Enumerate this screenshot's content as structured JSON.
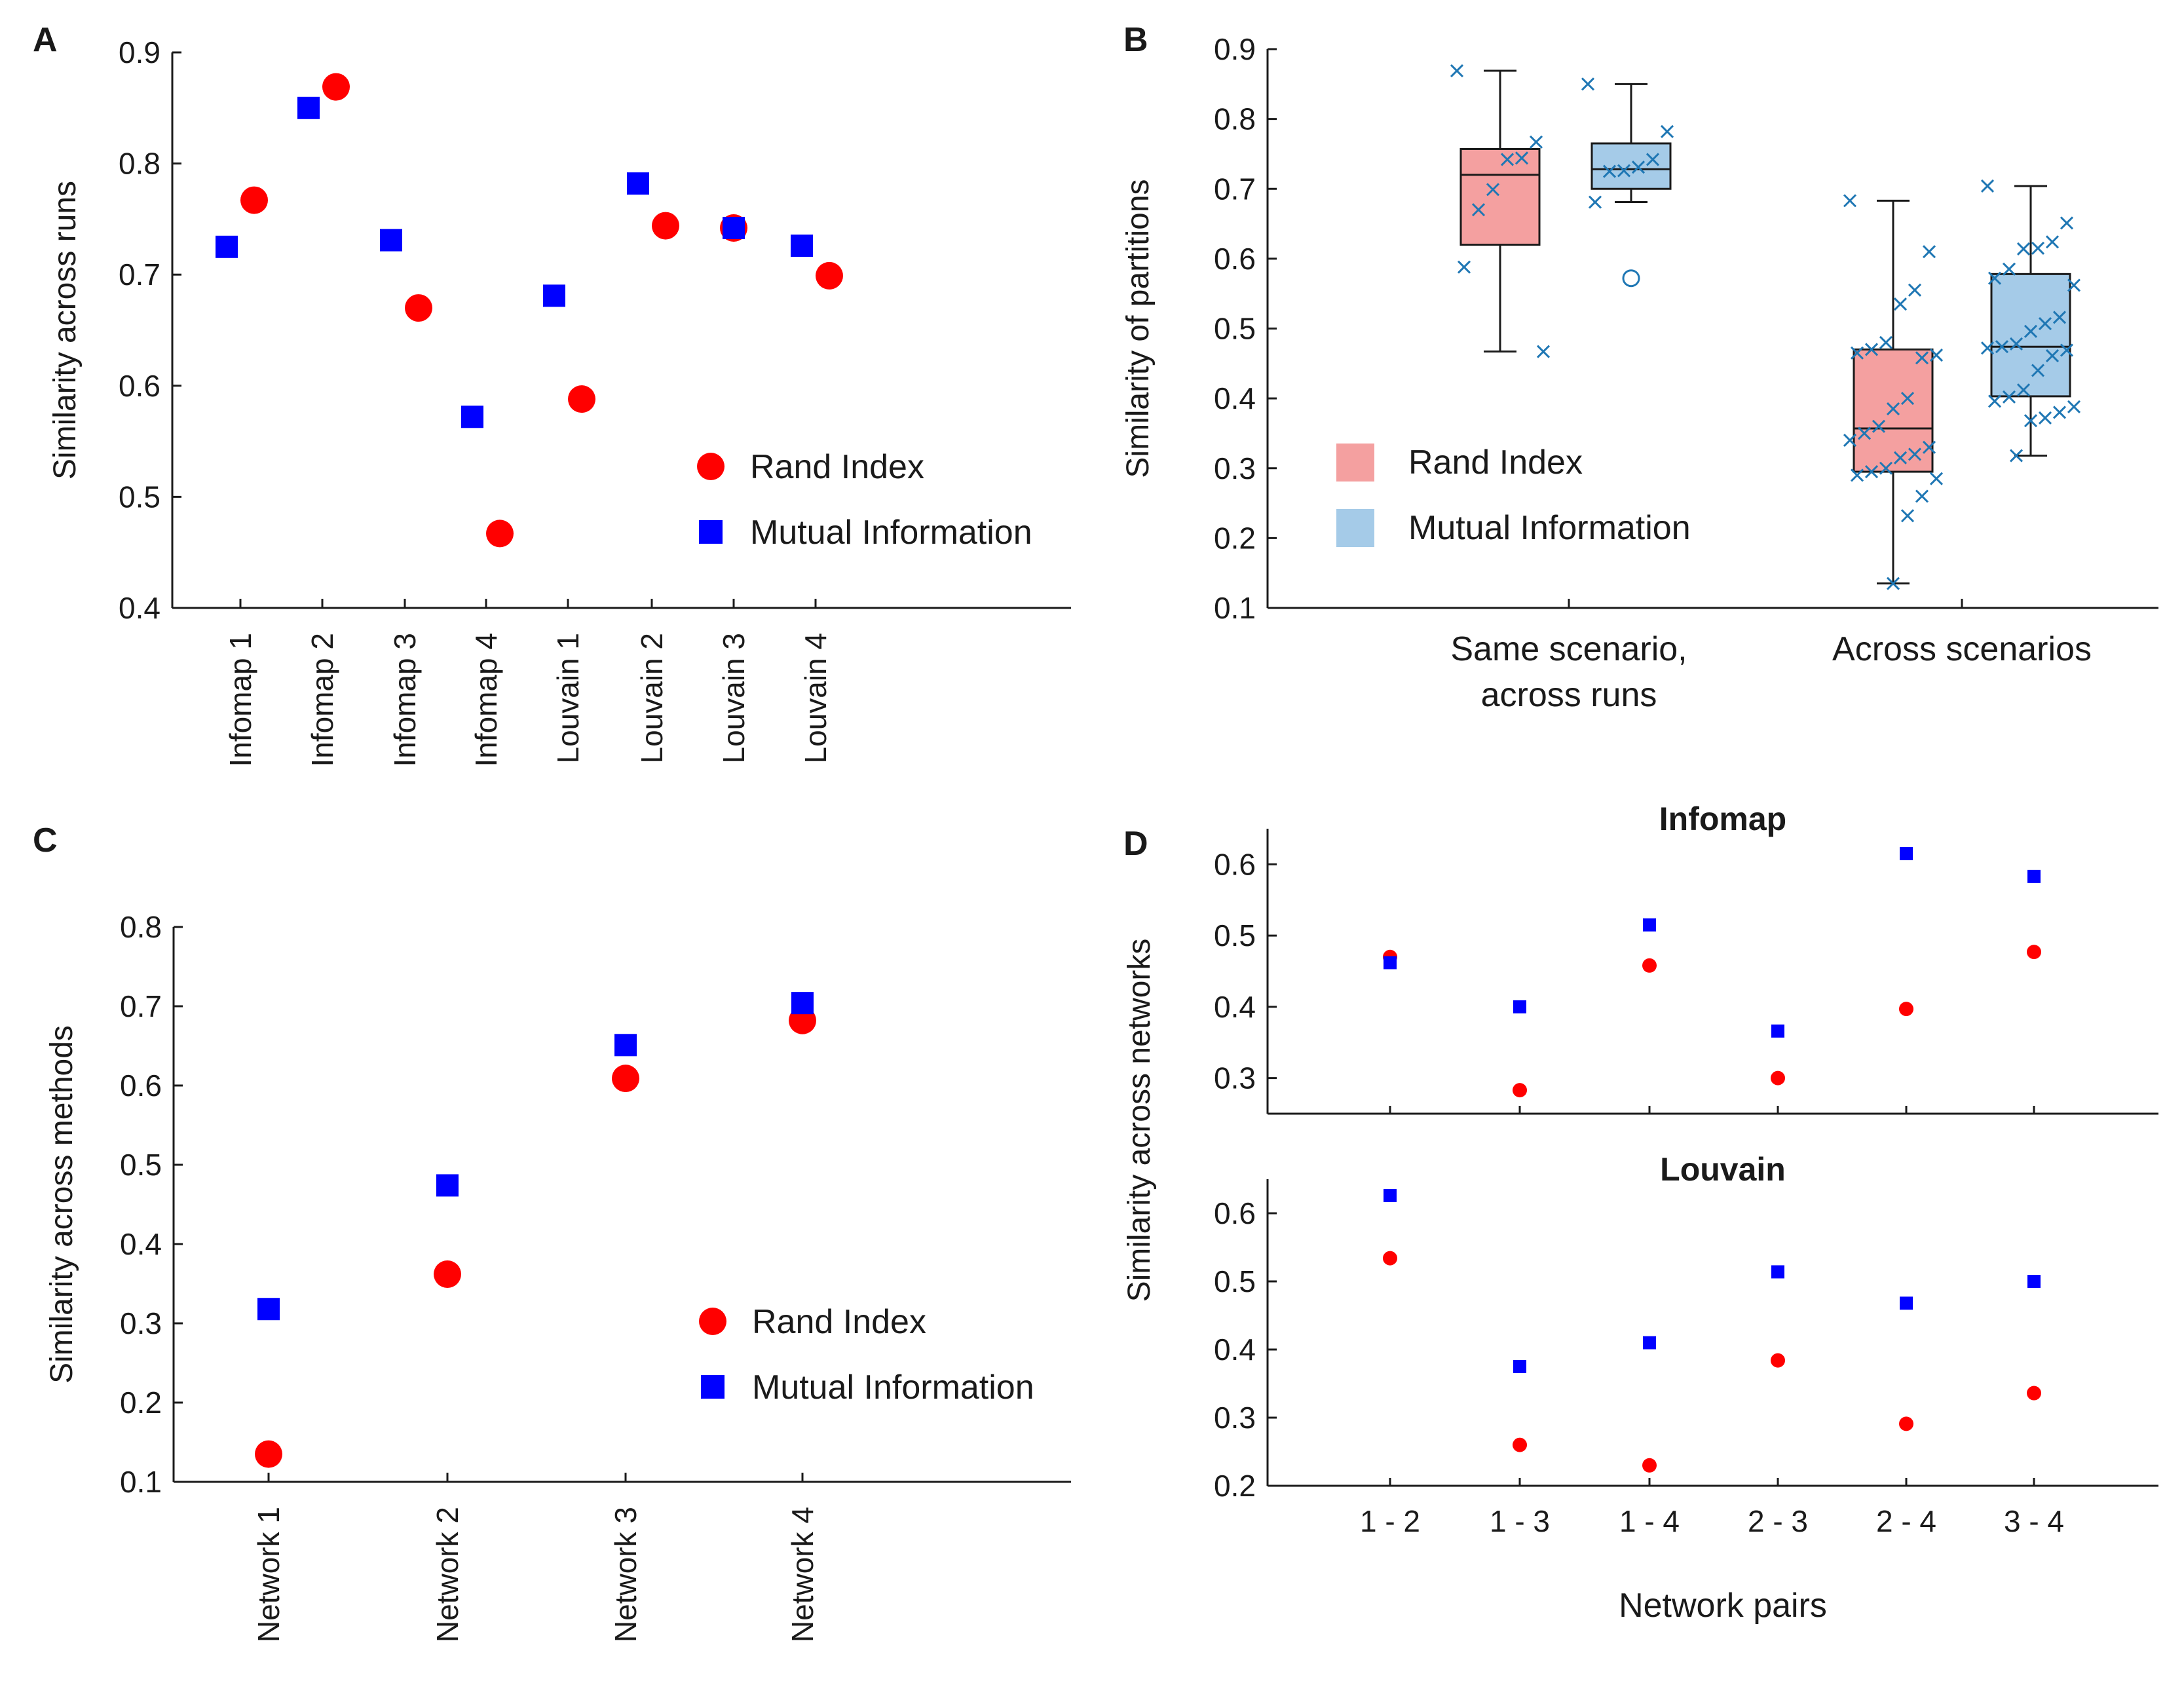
{
  "colors": {
    "rand": "#ff0000",
    "mi": "#0000ff",
    "rand_box": "#f4a0a0",
    "mi_box": "#a5cbe8",
    "scatter_x": "#1f77b4",
    "axis": "#1a1a1a"
  },
  "chart_data": [
    {
      "id": "A",
      "type": "scatter",
      "panel_label": "A",
      "title": "",
      "xlabel": "",
      "ylabel": "Similarity  across runs",
      "ylim": [
        0.4,
        0.9
      ],
      "yticks": [
        "0.4",
        "0.5",
        "0.6",
        "0.7",
        "0.8",
        "0.9"
      ],
      "categories": [
        "Infomap 1",
        "Infomap 2",
        "Infomap 3",
        "Infomap 4",
        "Louvain 1",
        "Louvain 2",
        "Louvain 3",
        "Louvain 4"
      ],
      "series": [
        {
          "name": "Rand Index",
          "marker": "circle",
          "values": [
            0.767,
            0.869,
            0.67,
            0.467,
            0.588,
            0.744,
            0.742,
            0.699
          ]
        },
        {
          "name": "Mutual Information",
          "marker": "square",
          "values": [
            0.725,
            0.85,
            0.731,
            0.572,
            0.681,
            0.782,
            0.742,
            0.726
          ]
        }
      ],
      "legend": [
        "Rand Index",
        "Mutual Information"
      ]
    },
    {
      "id": "B",
      "type": "box",
      "panel_label": "B",
      "title": "",
      "xlabel": "",
      "ylabel": "Similarity of partitions",
      "ylim": [
        0.1,
        0.9
      ],
      "yticks": [
        "0.1",
        "0.2",
        "0.3",
        "0.4",
        "0.5",
        "0.6",
        "0.7",
        "0.8",
        "0.9"
      ],
      "groups": [
        {
          "label_lines": [
            "Same scenario,",
            "across runs"
          ]
        },
        {
          "label_lines": [
            "Across scenarios"
          ]
        }
      ],
      "boxes": [
        {
          "group": 0,
          "series": "Rand Index",
          "min": 0.467,
          "q1": 0.62,
          "median": 0.72,
          "q3": 0.757,
          "max": 0.869,
          "outliers": [],
          "points": [
            0.869,
            0.767,
            0.744,
            0.742,
            0.699,
            0.67,
            0.588,
            0.467
          ]
        },
        {
          "group": 0,
          "series": "Mutual Information",
          "min": 0.681,
          "q1": 0.7,
          "median": 0.728,
          "q3": 0.765,
          "max": 0.85,
          "outliers": [
            0.572
          ],
          "points": [
            0.85,
            0.782,
            0.742,
            0.731,
            0.726,
            0.725,
            0.681
          ]
        },
        {
          "group": 1,
          "series": "Rand Index",
          "min": 0.135,
          "q1": 0.295,
          "median": 0.357,
          "q3": 0.47,
          "max": 0.683,
          "outliers": [],
          "points": [
            0.683,
            0.61,
            0.555,
            0.535,
            0.48,
            0.47,
            0.465,
            0.462,
            0.458,
            0.4,
            0.385,
            0.36,
            0.35,
            0.34,
            0.33,
            0.32,
            0.315,
            0.3,
            0.295,
            0.29,
            0.285,
            0.26,
            0.232,
            0.135
          ]
        },
        {
          "group": 1,
          "series": "Mutual Information",
          "min": 0.318,
          "q1": 0.403,
          "median": 0.474,
          "q3": 0.578,
          "max": 0.704,
          "outliers": [],
          "points": [
            0.704,
            0.651,
            0.624,
            0.615,
            0.614,
            0.585,
            0.572,
            0.562,
            0.516,
            0.507,
            0.496,
            0.478,
            0.474,
            0.472,
            0.469,
            0.461,
            0.44,
            0.412,
            0.402,
            0.396,
            0.388,
            0.38,
            0.372,
            0.368,
            0.318
          ]
        }
      ],
      "legend": [
        "Rand Index",
        "Mutual Information"
      ]
    },
    {
      "id": "C",
      "type": "scatter",
      "panel_label": "C",
      "title": "",
      "xlabel": "",
      "ylabel": "Similarity across methods",
      "ylim": [
        0.1,
        0.8
      ],
      "yticks": [
        "0.1",
        "0.2",
        "0.3",
        "0.4",
        "0.5",
        "0.6",
        "0.7",
        "0.8"
      ],
      "categories": [
        "Network 1",
        "Network 2",
        "Network 3",
        "Network 4"
      ],
      "series": [
        {
          "name": "Rand Index",
          "marker": "circle",
          "values": [
            0.135,
            0.362,
            0.609,
            0.682
          ]
        },
        {
          "name": "Mutual Information",
          "marker": "square",
          "values": [
            0.318,
            0.474,
            0.651,
            0.704
          ]
        }
      ],
      "legend": [
        "Rand Index",
        "Mutual Information"
      ]
    },
    {
      "id": "D1",
      "type": "scatter",
      "panel_label": "D",
      "title": "Infomap",
      "xlabel": "",
      "ylabel": "Similarity across networks",
      "ylim": [
        0.25,
        0.65
      ],
      "yticks": [
        "0.3",
        "0.4",
        "0.5",
        "0.6"
      ],
      "categories": [
        "1 - 2",
        "1 - 3",
        "1 - 4",
        "2 - 3",
        "2 - 4",
        "3 - 4"
      ],
      "series": [
        {
          "name": "Rand Index",
          "marker": "circle",
          "values": [
            0.47,
            0.283,
            0.458,
            0.3,
            0.397,
            0.477
          ]
        },
        {
          "name": "Mutual Information",
          "marker": "square",
          "values": [
            0.462,
            0.4,
            0.515,
            0.366,
            0.615,
            0.583
          ]
        }
      ]
    },
    {
      "id": "D2",
      "type": "scatter",
      "panel_label": "",
      "title": "Louvain",
      "xlabel": "Network pairs",
      "ylabel": "Similarity across networks",
      "ylim": [
        0.2,
        0.65
      ],
      "yticks": [
        "0.2",
        "0.3",
        "0.4",
        "0.5",
        "0.6"
      ],
      "categories": [
        "1 - 2",
        "1 - 3",
        "1 - 4",
        "2 - 3",
        "2 - 4",
        "3 - 4"
      ],
      "series": [
        {
          "name": "Rand Index",
          "marker": "circle",
          "values": [
            0.534,
            0.26,
            0.23,
            0.384,
            0.291,
            0.336
          ]
        },
        {
          "name": "Mutual Information",
          "marker": "square",
          "values": [
            0.626,
            0.375,
            0.41,
            0.514,
            0.468,
            0.5
          ]
        }
      ]
    }
  ]
}
